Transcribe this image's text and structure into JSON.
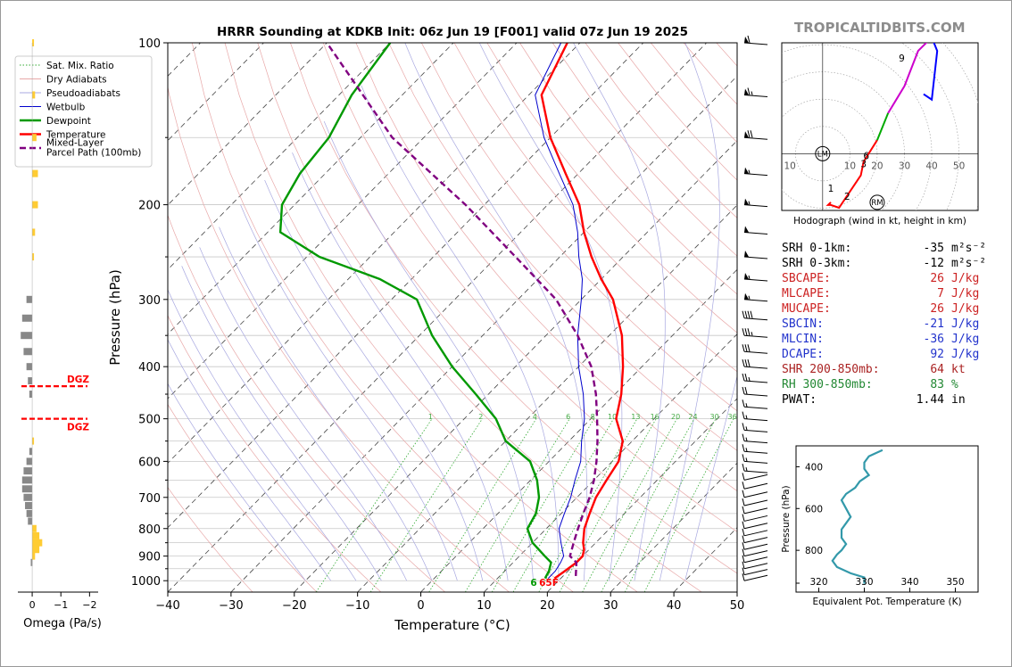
{
  "title": "HRRR Sounding at KDKB Init: 06z Jun 19 [F001] valid 07z Jun 19 2025",
  "brand": "TROPICALTIDBITS.COM",
  "chart_data": [
    {
      "type": "line",
      "name": "skewt",
      "title": "HRRR Sounding at KDKB Init: 06z Jun 19 [F001] valid 07z Jun 19 2025",
      "xlabel": "Temperature (°C)",
      "ylabel": "Pressure (hPa)",
      "xlim": [
        -40,
        50
      ],
      "ylim": [
        1050,
        100
      ],
      "y_scale": "log",
      "x_ticks": [
        "−40",
        "−30",
        "−20",
        "−10",
        "0",
        "10",
        "20",
        "30",
        "40",
        "50"
      ],
      "y_ticks": [
        "1000",
        "900",
        "800",
        "700",
        "600",
        "500",
        "400",
        "300",
        "200",
        "100"
      ],
      "legend": {
        "placement": "top-left",
        "entries": [
          "Sat. Mix. Ratio",
          "Dry Adiabats",
          "Pseudoadiabats",
          "Wetbulb",
          "Dewpoint",
          "Temperature",
          "Mixed-Layer\nParcel Path (100mb)"
        ]
      },
      "mixing_ratio_labels": [
        "1",
        "2",
        "4",
        "6",
        "8",
        "10",
        "13",
        "16",
        "20",
        "24",
        "30",
        "36"
      ],
      "surface_labels": {
        "dewpoint_f": "65",
        "temperature_f": "65F",
        "dewpoint_prefix": "6"
      },
      "series": [
        {
          "name": "Temperature",
          "color": "#ff0000",
          "p": [
            990,
            960,
            925,
            900,
            875,
            850,
            800,
            750,
            700,
            650,
            600,
            550,
            500,
            450,
            400,
            350,
            300,
            275,
            250,
            225,
            200,
            175,
            150,
            125,
            100
          ],
          "t": [
            19,
            19.5,
            20,
            20,
            19.2,
            18,
            16,
            14.5,
            13,
            12,
            11,
            8.5,
            4,
            1,
            -3,
            -8,
            -15,
            -20,
            -25,
            -30,
            -35,
            -42,
            -50,
            -58,
            -62
          ]
        },
        {
          "name": "Dewpoint",
          "color": "#009900",
          "p": [
            990,
            960,
            925,
            900,
            850,
            800,
            750,
            700,
            650,
            600,
            550,
            500,
            450,
            400,
            350,
            300,
            275,
            250,
            225,
            200,
            175,
            150,
            125,
            100
          ],
          "t": [
            17.5,
            17,
            16,
            14,
            10,
            7,
            6,
            4,
            1,
            -3,
            -10,
            -15,
            -22,
            -30,
            -38,
            -46,
            -55,
            -68,
            -78,
            -82,
            -84,
            -85,
            -88,
            -90
          ]
        },
        {
          "name": "Wetbulb",
          "color": "#0000cc",
          "p": [
            990,
            960,
            925,
            900,
            850,
            800,
            750,
            700,
            650,
            600,
            550,
            500,
            450,
            400,
            350,
            300,
            275,
            250,
            225,
            200,
            175,
            150,
            125,
            100
          ],
          "t": [
            18,
            18,
            17.5,
            17,
            14.5,
            12,
            10.5,
            9,
            7,
            5,
            2,
            -1,
            -5,
            -10,
            -15,
            -20,
            -23,
            -27,
            -31,
            -36,
            -43,
            -51,
            -59,
            -63
          ]
        },
        {
          "name": "Mixed-Layer\nParcel Path (100mb)",
          "color": "#800080",
          "dash": true,
          "p": [
            980,
            925,
            900,
            850,
            800,
            750,
            700,
            650,
            600,
            550,
            500,
            450,
            400,
            350,
            300,
            250,
            200,
            150,
            100
          ],
          "t": [
            22,
            20,
            18,
            16.5,
            15,
            13.5,
            12,
            10,
            7.5,
            4.5,
            1,
            -3,
            -8,
            -15,
            -24,
            -37,
            -53,
            -75,
            -100
          ]
        }
      ]
    },
    {
      "type": "bar",
      "name": "omega",
      "xlabel": "Omega (Pa/s)",
      "x_ticks": [
        "0",
        "−1",
        "−2"
      ],
      "xlim": [
        0.5,
        -2.3
      ],
      "dgz_label": "DGZ",
      "dgz_bounds_hpa": [
        435,
        500
      ],
      "levels_hpa": [
        100,
        125,
        150,
        175,
        200,
        225,
        250,
        300,
        325,
        350,
        375,
        400,
        425,
        450,
        550,
        575,
        600,
        625,
        650,
        675,
        700,
        725,
        750,
        775,
        800,
        825,
        850,
        875,
        900,
        925
      ],
      "values": [
        -0.05,
        -0.1,
        -0.15,
        -0.2,
        -0.2,
        -0.1,
        -0.05,
        0.2,
        0.35,
        0.4,
        0.3,
        0.2,
        0.15,
        0.1,
        -0.05,
        0.1,
        0.2,
        0.3,
        0.35,
        0.35,
        0.3,
        0.25,
        0.2,
        0.15,
        -0.15,
        -0.25,
        -0.35,
        -0.25,
        -0.1,
        0.05
      ]
    },
    {
      "type": "line",
      "name": "hodograph",
      "xlabel": "Hodograph (wind in kt, height in km)",
      "xlim": [
        -15,
        57
      ],
      "ylim": [
        -21,
        41
      ],
      "ring_labels": [
        "10",
        "10",
        "20",
        "30",
        "40",
        "50"
      ],
      "height_labels": [
        "1",
        "2",
        "3",
        "6",
        "9"
      ],
      "markers": [
        "LM",
        "RM"
      ],
      "u": [
        3,
        2,
        3,
        6,
        10,
        14,
        15,
        20,
        24,
        30,
        35,
        40,
        42,
        40,
        37
      ],
      "v": [
        -18,
        -19,
        -19,
        -20,
        -14,
        -8,
        -3,
        5,
        15,
        25,
        38,
        43,
        38,
        20,
        22
      ],
      "segment_colors": [
        "#ff0000",
        "#00aa00",
        "#cc00cc",
        "#0000ff"
      ]
    },
    {
      "type": "line",
      "name": "theta-e",
      "xlabel": "Equivalent Pot. Temperature (K)",
      "ylabel": "Pressure (hPa)",
      "xlim": [
        315,
        355
      ],
      "ylim": [
        1000,
        300
      ],
      "x_ticks": [
        "320",
        "330",
        "340",
        "350"
      ],
      "y_ticks": [
        "400",
        "600",
        "800"
      ],
      "p": [
        960,
        930,
        910,
        880,
        850,
        820,
        800,
        770,
        740,
        700,
        670,
        640,
        600,
        560,
        530,
        500,
        470,
        440,
        410,
        380,
        350,
        320
      ],
      "thetae": [
        330,
        330,
        327,
        324,
        323,
        324,
        325,
        326,
        325,
        325,
        326,
        327,
        326,
        325,
        326,
        328,
        329,
        331,
        330,
        330,
        331,
        334
      ],
      "color": "#3399aa"
    }
  ],
  "stats": [
    {
      "label": "SRH 0-1km:",
      "value": "-35",
      "unit": "m²s⁻²",
      "color": "#000000"
    },
    {
      "label": "SRH 0-3km:",
      "value": "-12",
      "unit": "m²s⁻²",
      "color": "#000000"
    },
    {
      "label": "SBCAPE:",
      "value": "26",
      "unit": "J/kg",
      "color": "#cc2222"
    },
    {
      "label": "MLCAPE:",
      "value": "7",
      "unit": "J/kg",
      "color": "#cc2222"
    },
    {
      "label": "MUCAPE:",
      "value": "26",
      "unit": "J/kg",
      "color": "#cc2222"
    },
    {
      "label": "SBCIN:",
      "value": "-21",
      "unit": "J/kg",
      "color": "#2233cc"
    },
    {
      "label": "MLCIN:",
      "value": "-36",
      "unit": "J/kg",
      "color": "#2233cc"
    },
    {
      "label": "DCAPE:",
      "value": "92",
      "unit": "J/kg",
      "color": "#2233cc"
    },
    {
      "label": "SHR 200-850mb:",
      "value": "64",
      "unit": "kt",
      "color": "#aa2222"
    },
    {
      "label": "RH 300-850mb:",
      "value": "83",
      "unit": "%",
      "color": "#228833"
    },
    {
      "label": "PWAT:",
      "value": "1.44",
      "unit": "in",
      "color": "#000000"
    }
  ],
  "barbs": {
    "levels_hpa": [
      100,
      125,
      150,
      175,
      200,
      225,
      250,
      275,
      300,
      325,
      350,
      375,
      400,
      425,
      450,
      475,
      500,
      525,
      550,
      575,
      600,
      625,
      650,
      675,
      700,
      725,
      750,
      775,
      800,
      825,
      850,
      875,
      900,
      925,
      950,
      975,
      1000
    ],
    "speed_kt": [
      60,
      65,
      70,
      55,
      55,
      50,
      50,
      55,
      55,
      40,
      35,
      30,
      30,
      25,
      20,
      15,
      15,
      15,
      15,
      15,
      15,
      15,
      10,
      10,
      10,
      10,
      10,
      10,
      10,
      10,
      10,
      10,
      10,
      10,
      10,
      10,
      10
    ]
  }
}
